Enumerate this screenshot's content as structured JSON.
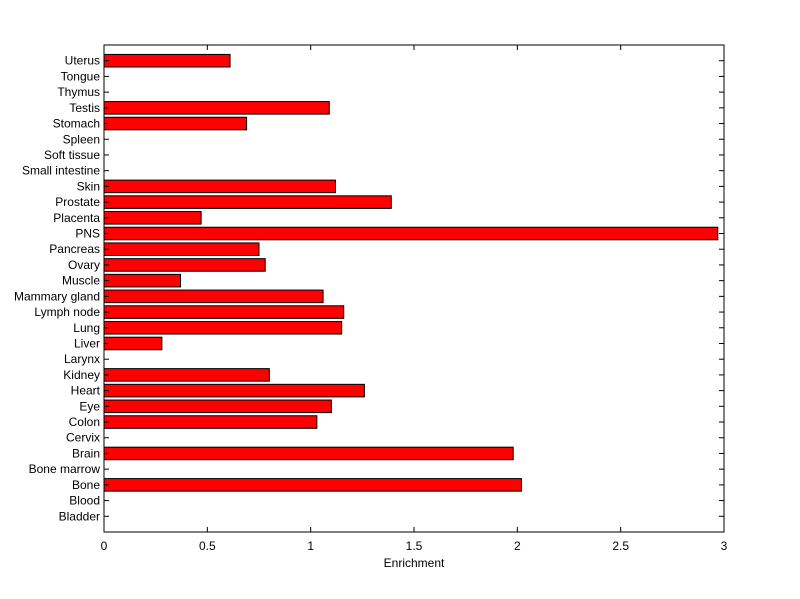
{
  "chart_data": {
    "type": "bar",
    "orientation": "horizontal",
    "categories": [
      "Bladder",
      "Blood",
      "Bone",
      "Bone marrow",
      "Brain",
      "Cervix",
      "Colon",
      "Eye",
      "Heart",
      "Kidney",
      "Larynx",
      "Liver",
      "Lung",
      "Lymph node",
      "Mammary gland",
      "Muscle",
      "Ovary",
      "Pancreas",
      "PNS",
      "Placenta",
      "Prostate",
      "Skin",
      "Small intestine",
      "Soft tissue",
      "Spleen",
      "Stomach",
      "Testis",
      "Thymus",
      "Tongue",
      "Uterus"
    ],
    "values": [
      0,
      0,
      2.02,
      0,
      1.98,
      0,
      1.03,
      1.1,
      1.26,
      0.8,
      0,
      0.28,
      1.15,
      1.16,
      1.06,
      0.37,
      0.78,
      0.75,
      2.97,
      0.47,
      1.39,
      1.12,
      0,
      0,
      0,
      0.69,
      1.09,
      0,
      0,
      0.61
    ],
    "title": "",
    "xlabel": "Enrichment",
    "ylabel": "",
    "xlim": [
      0,
      3
    ],
    "xticks": [
      "0",
      "0.5",
      "1",
      "1.5",
      "2",
      "2.5",
      "3"
    ],
    "grid": false,
    "colors": {
      "bar": "#ff0000",
      "edge": "#000000",
      "axis": "#000000"
    }
  }
}
